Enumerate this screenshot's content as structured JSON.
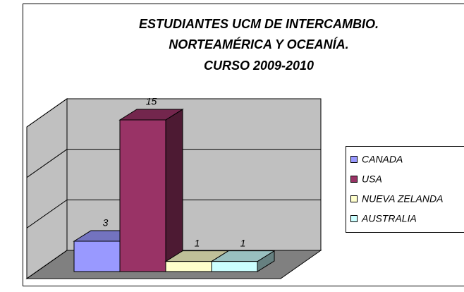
{
  "chart_data": {
    "type": "bar3d",
    "title": [
      "ESTUDIANTES UCM DE INTERCAMBIO.",
      "NORTEAMÉRICA Y OCEANÍA.",
      "CURSO 2009-2010"
    ],
    "categories": [
      "CANADA",
      "USA",
      "NUEVA ZELANDA",
      "AUSTRALIA"
    ],
    "values": [
      3,
      15,
      1,
      1
    ],
    "colors": [
      "#9999ff",
      "#993366",
      "#ffffcc",
      "#ccffff"
    ],
    "ylim": [
      0,
      15
    ],
    "yticks": [
      0,
      5,
      10,
      15
    ],
    "grid": true,
    "legend": "right"
  }
}
